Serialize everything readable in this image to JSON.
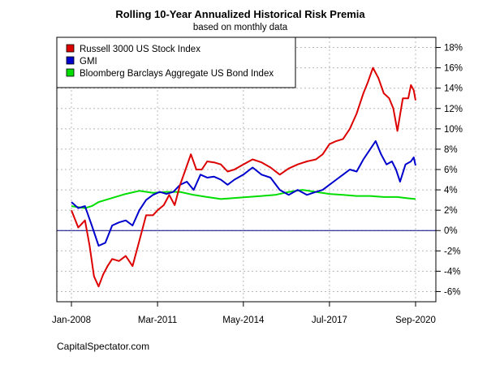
{
  "chart_data": {
    "type": "line",
    "title": "Rolling 10-Year Annualized Historical Risk Premia",
    "subtitle": "based on monthly data",
    "source": "CapitalSpectator.com",
    "x_range": [
      2008.0,
      2020.67
    ],
    "ylim": [
      -7,
      19
    ],
    "y_ticks": [
      18,
      16,
      14,
      12,
      10,
      8,
      6,
      4,
      2,
      0,
      -2,
      -4,
      -6
    ],
    "y_tick_labels": [
      "18%",
      "16%",
      "14%",
      "12%",
      "10%",
      "8%",
      "6%",
      "4%",
      "2%",
      "0%",
      "-2%",
      "-4%",
      "-6%"
    ],
    "x_ticks": [
      2008.0,
      2011.17,
      2014.33,
      2017.5,
      2020.67
    ],
    "x_tick_labels": [
      "Jan-2008",
      "Mar-2011",
      "May-2014",
      "Jul-2017",
      "Sep-2020"
    ],
    "y_axis_side": "right",
    "grid": true,
    "zero_line": true,
    "legend_position": "top-left",
    "series": [
      {
        "name": "Russell 3000 US Stock Index",
        "color": "#dd0000",
        "x": [
          2008.0,
          2008.25,
          2008.5,
          2008.67,
          2008.83,
          2009.0,
          2009.17,
          2009.33,
          2009.5,
          2009.75,
          2010.0,
          2010.25,
          2010.5,
          2010.75,
          2011.0,
          2011.17,
          2011.4,
          2011.6,
          2011.8,
          2012.0,
          2012.2,
          2012.4,
          2012.6,
          2012.8,
          2013.0,
          2013.25,
          2013.5,
          2013.75,
          2014.0,
          2014.33,
          2014.67,
          2015.0,
          2015.33,
          2015.67,
          2016.0,
          2016.33,
          2016.67,
          2017.0,
          2017.25,
          2017.5,
          2017.75,
          2018.0,
          2018.25,
          2018.5,
          2018.75,
          2018.9,
          2019.1,
          2019.3,
          2019.5,
          2019.7,
          2019.85,
          2020.0,
          2020.2,
          2020.4,
          2020.5,
          2020.6,
          2020.67
        ],
        "y": [
          2.0,
          0.3,
          1.0,
          -1.5,
          -4.5,
          -5.5,
          -4.3,
          -3.5,
          -2.8,
          -3.0,
          -2.5,
          -3.5,
          -1.0,
          1.5,
          1.5,
          2.0,
          2.5,
          3.5,
          2.5,
          4.5,
          6.0,
          7.5,
          6.0,
          6.0,
          6.8,
          6.7,
          6.5,
          5.8,
          6.0,
          6.5,
          7.0,
          6.7,
          6.2,
          5.5,
          6.1,
          6.5,
          6.8,
          7.0,
          7.5,
          8.5,
          8.8,
          9.0,
          10.0,
          11.5,
          13.5,
          14.5,
          16.0,
          15.0,
          13.5,
          13.0,
          12.0,
          9.8,
          13.0,
          13.0,
          14.3,
          13.8,
          12.8
        ]
      },
      {
        "name": "GMI",
        "color": "#0000cc",
        "x": [
          2008.0,
          2008.25,
          2008.5,
          2008.75,
          2009.0,
          2009.25,
          2009.5,
          2009.75,
          2010.0,
          2010.25,
          2010.5,
          2010.75,
          2011.0,
          2011.25,
          2011.5,
          2011.75,
          2012.0,
          2012.25,
          2012.5,
          2012.75,
          2013.0,
          2013.25,
          2013.5,
          2013.75,
          2014.0,
          2014.33,
          2014.67,
          2015.0,
          2015.33,
          2015.67,
          2016.0,
          2016.33,
          2016.67,
          2017.0,
          2017.25,
          2017.5,
          2017.75,
          2018.0,
          2018.25,
          2018.5,
          2018.75,
          2019.0,
          2019.2,
          2019.4,
          2019.6,
          2019.8,
          2019.95,
          2020.1,
          2020.3,
          2020.5,
          2020.6,
          2020.67
        ],
        "y": [
          2.8,
          2.2,
          2.4,
          0.5,
          -1.5,
          -1.2,
          0.5,
          0.8,
          1.0,
          0.5,
          2.0,
          3.0,
          3.5,
          3.8,
          3.6,
          3.8,
          4.5,
          4.8,
          4.0,
          5.5,
          5.2,
          5.3,
          5.0,
          4.5,
          5.0,
          5.5,
          6.2,
          5.5,
          5.2,
          4.0,
          3.5,
          4.0,
          3.5,
          3.8,
          4.0,
          4.5,
          5.0,
          5.5,
          6.0,
          5.8,
          7.0,
          8.0,
          8.8,
          7.5,
          6.5,
          6.8,
          6.0,
          4.8,
          6.5,
          6.8,
          7.2,
          6.4
        ]
      },
      {
        "name": "Bloomberg Barclays Aggregate US Bond Index",
        "color": "#00dd00",
        "x": [
          2008.0,
          2008.25,
          2008.5,
          2008.75,
          2009.0,
          2009.5,
          2010.0,
          2010.5,
          2011.0,
          2011.5,
          2012.0,
          2012.5,
          2013.0,
          2013.5,
          2014.0,
          2014.5,
          2015.0,
          2015.5,
          2016.0,
          2016.5,
          2017.0,
          2017.5,
          2018.0,
          2018.5,
          2019.0,
          2019.5,
          2020.0,
          2020.3,
          2020.67
        ],
        "y": [
          2.4,
          2.3,
          2.2,
          2.4,
          2.8,
          3.2,
          3.6,
          3.9,
          3.7,
          3.8,
          3.8,
          3.5,
          3.3,
          3.1,
          3.2,
          3.3,
          3.4,
          3.5,
          3.8,
          4.0,
          3.8,
          3.6,
          3.5,
          3.4,
          3.4,
          3.3,
          3.3,
          3.2,
          3.1
        ]
      }
    ]
  }
}
